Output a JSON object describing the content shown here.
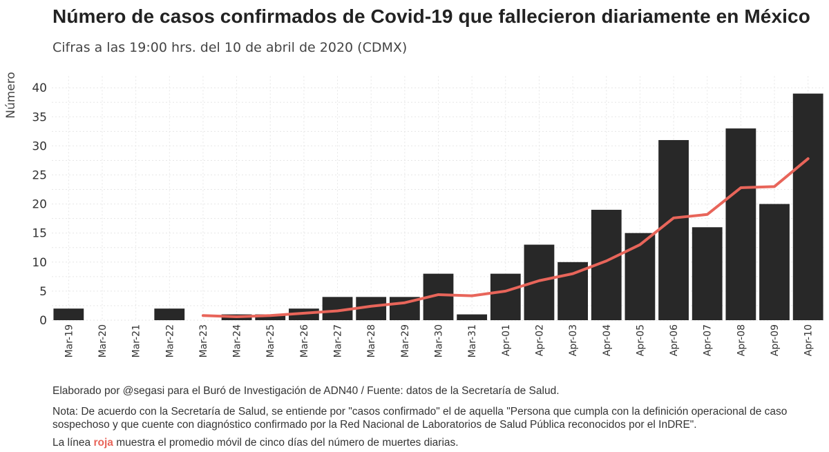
{
  "title": "Número de casos confirmados de Covid-19 que fallecieron diariamente en México",
  "subtitle": "Cifras a las 19:00 hrs. del 10 de abril de 2020 (CDMX)",
  "footer": {
    "credit": "Elaborado por @segasi para el Buró de Investigación de ADN40 / Fuente: datos de la Secretaría de Salud.",
    "note": "Nota: De acuerdo con la Secretaría de Salud, se entiende por \"casos confirmado\" el de aquella \"Persona que cumpla con la definición operacional de caso sospechoso y que cuente con diagnóstico confirmado por la Red Nacional de Laboratorios de Salud Pública reconocidos por el InDRE\".",
    "line_pre": "La línea ",
    "line_red": "roja",
    "line_post": " muestra el promedio móvil de cinco días del número de muertes diarias."
  },
  "colors": {
    "bar": "#282828",
    "line": "#e8655a",
    "grid": "#e6e6e6"
  },
  "chart_data": {
    "type": "bar",
    "xlabel": "",
    "ylabel": "Número",
    "ylim": [
      0,
      42
    ],
    "yticks": [
      0,
      5,
      10,
      15,
      20,
      25,
      30,
      35,
      40
    ],
    "grid": true,
    "categories": [
      "Mar-19",
      "Mar-20",
      "Mar-21",
      "Mar-22",
      "Mar-23",
      "Mar-24",
      "Mar-25",
      "Mar-26",
      "Mar-27",
      "Mar-28",
      "Mar-29",
      "Mar-30",
      "Mar-31",
      "Apr-01",
      "Apr-02",
      "Apr-03",
      "Apr-04",
      "Apr-05",
      "Apr-06",
      "Apr-07",
      "Apr-08",
      "Apr-09",
      "Apr-10"
    ],
    "series": [
      {
        "type": "bar",
        "values": [
          2,
          0,
          0,
          2,
          0,
          1,
          1,
          2,
          4,
          4,
          4,
          8,
          1,
          8,
          13,
          10,
          19,
          15,
          31,
          16,
          33,
          20,
          39
        ]
      },
      {
        "type": "line",
        "values": [
          null,
          null,
          null,
          null,
          0.8,
          0.6,
          0.8,
          1.2,
          1.6,
          2.4,
          3.0,
          4.4,
          4.2,
          5.0,
          6.8,
          8.0,
          10.2,
          13.0,
          17.6,
          18.2,
          22.8,
          23.0,
          27.8
        ]
      }
    ]
  }
}
